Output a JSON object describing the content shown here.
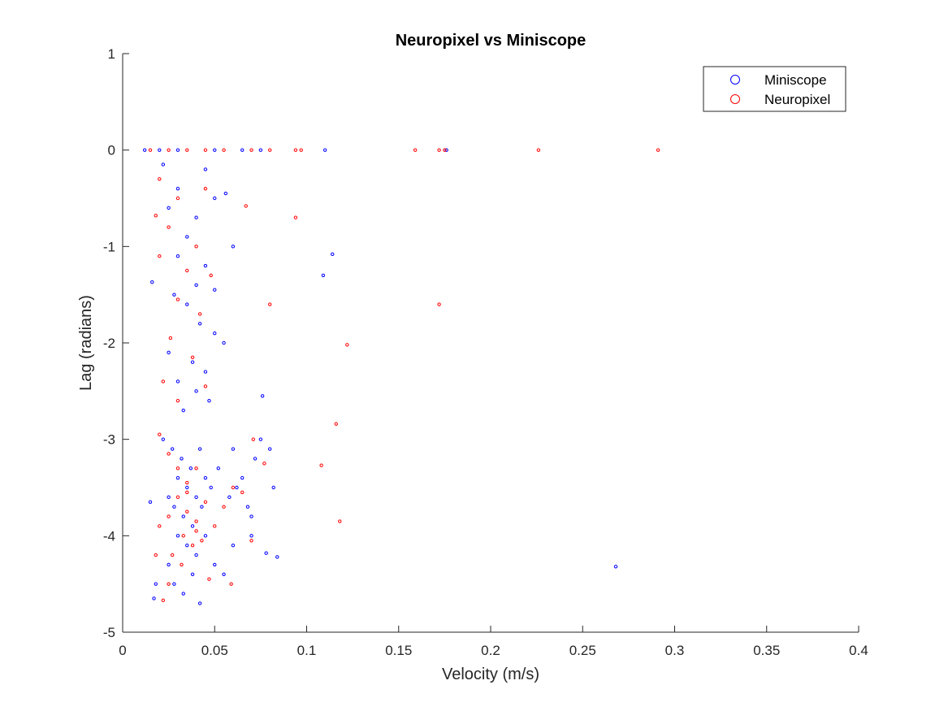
{
  "chart_data": {
    "type": "scatter",
    "title": "Neuropixel vs Miniscope",
    "xlabel": "Velocity (m/s)",
    "ylabel": "Lag (radians)",
    "xlim": [
      0,
      0.4
    ],
    "ylim": [
      -5,
      1
    ],
    "xticks": [
      "0",
      "0.05",
      "0.1",
      "0.15",
      "0.2",
      "0.25",
      "0.3",
      "0.35",
      "0.4"
    ],
    "yticks": [
      "1",
      "0",
      "-1",
      "-2",
      "-3",
      "-4",
      "-5"
    ],
    "grid": false,
    "legend_position": "top-right",
    "colors": {
      "Miniscope": "#0000ff",
      "Neuropixel": "#ff0000"
    },
    "series": [
      {
        "name": "Miniscope",
        "points": [
          [
            0.012,
            0
          ],
          [
            0.02,
            0
          ],
          [
            0.03,
            0
          ],
          [
            0.05,
            0
          ],
          [
            0.065,
            0
          ],
          [
            0.075,
            0
          ],
          [
            0.11,
            0
          ],
          [
            0.176,
            0
          ],
          [
            0.022,
            -0.15
          ],
          [
            0.045,
            -0.2
          ],
          [
            0.03,
            -0.4
          ],
          [
            0.05,
            -0.5
          ],
          [
            0.056,
            -0.45
          ],
          [
            0.025,
            -0.6
          ],
          [
            0.04,
            -0.7
          ],
          [
            0.035,
            -0.9
          ],
          [
            0.06,
            -1.0
          ],
          [
            0.03,
            -1.1
          ],
          [
            0.045,
            -1.2
          ],
          [
            0.016,
            -1.37
          ],
          [
            0.04,
            -1.4
          ],
          [
            0.05,
            -1.45
          ],
          [
            0.028,
            -1.5
          ],
          [
            0.035,
            -1.6
          ],
          [
            0.042,
            -1.8
          ],
          [
            0.05,
            -1.9
          ],
          [
            0.055,
            -2.0
          ],
          [
            0.025,
            -2.1
          ],
          [
            0.038,
            -2.2
          ],
          [
            0.045,
            -2.3
          ],
          [
            0.03,
            -2.4
          ],
          [
            0.04,
            -2.5
          ],
          [
            0.047,
            -2.6
          ],
          [
            0.033,
            -2.7
          ],
          [
            0.022,
            -3.0
          ],
          [
            0.027,
            -3.1
          ],
          [
            0.032,
            -3.2
          ],
          [
            0.037,
            -3.3
          ],
          [
            0.042,
            -3.1
          ],
          [
            0.03,
            -3.4
          ],
          [
            0.035,
            -3.5
          ],
          [
            0.04,
            -3.6
          ],
          [
            0.045,
            -3.4
          ],
          [
            0.025,
            -3.6
          ],
          [
            0.028,
            -3.7
          ],
          [
            0.033,
            -3.8
          ],
          [
            0.038,
            -3.9
          ],
          [
            0.043,
            -3.7
          ],
          [
            0.048,
            -3.5
          ],
          [
            0.052,
            -3.3
          ],
          [
            0.058,
            -3.6
          ],
          [
            0.062,
            -3.5
          ],
          [
            0.068,
            -3.7
          ],
          [
            0.072,
            -3.2
          ],
          [
            0.075,
            -3.0
          ],
          [
            0.08,
            -3.1
          ],
          [
            0.082,
            -3.5
          ],
          [
            0.03,
            -4.0
          ],
          [
            0.035,
            -4.1
          ],
          [
            0.04,
            -4.2
          ],
          [
            0.045,
            -4.0
          ],
          [
            0.05,
            -4.3
          ],
          [
            0.025,
            -4.3
          ],
          [
            0.028,
            -4.5
          ],
          [
            0.033,
            -4.6
          ],
          [
            0.038,
            -4.4
          ],
          [
            0.055,
            -4.4
          ],
          [
            0.06,
            -4.1
          ],
          [
            0.07,
            -4.0
          ],
          [
            0.078,
            -4.18
          ],
          [
            0.084,
            -4.22
          ],
          [
            0.018,
            -4.5
          ],
          [
            0.017,
            -4.65
          ],
          [
            0.042,
            -4.7
          ],
          [
            0.015,
            -3.65
          ],
          [
            0.065,
            -3.4
          ],
          [
            0.07,
            -3.8
          ],
          [
            0.06,
            -3.1
          ],
          [
            0.109,
            -1.3
          ],
          [
            0.114,
            -1.08
          ],
          [
            0.076,
            -2.55
          ],
          [
            0.268,
            -4.32
          ]
        ]
      },
      {
        "name": "Neuropixel",
        "points": [
          [
            0.015,
            0
          ],
          [
            0.025,
            0
          ],
          [
            0.035,
            0
          ],
          [
            0.045,
            0
          ],
          [
            0.055,
            0
          ],
          [
            0.07,
            0
          ],
          [
            0.08,
            0
          ],
          [
            0.094,
            0
          ],
          [
            0.097,
            0
          ],
          [
            0.159,
            0
          ],
          [
            0.172,
            0
          ],
          [
            0.175,
            0
          ],
          [
            0.226,
            0
          ],
          [
            0.291,
            0
          ],
          [
            0.02,
            -0.3
          ],
          [
            0.03,
            -0.5
          ],
          [
            0.045,
            -0.4
          ],
          [
            0.018,
            -0.68
          ],
          [
            0.025,
            -0.8
          ],
          [
            0.04,
            -1.0
          ],
          [
            0.02,
            -1.1
          ],
          [
            0.035,
            -1.25
          ],
          [
            0.048,
            -1.3
          ],
          [
            0.03,
            -1.55
          ],
          [
            0.042,
            -1.7
          ],
          [
            0.026,
            -1.95
          ],
          [
            0.038,
            -2.15
          ],
          [
            0.022,
            -2.4
          ],
          [
            0.045,
            -2.45
          ],
          [
            0.03,
            -2.6
          ],
          [
            0.067,
            -0.58
          ],
          [
            0.094,
            -0.7
          ],
          [
            0.071,
            -3.0
          ],
          [
            0.02,
            -2.95
          ],
          [
            0.025,
            -3.15
          ],
          [
            0.03,
            -3.3
          ],
          [
            0.035,
            -3.45
          ],
          [
            0.04,
            -3.3
          ],
          [
            0.03,
            -3.6
          ],
          [
            0.035,
            -3.75
          ],
          [
            0.04,
            -3.85
          ],
          [
            0.045,
            -3.65
          ],
          [
            0.025,
            -3.8
          ],
          [
            0.02,
            -3.9
          ],
          [
            0.033,
            -4.0
          ],
          [
            0.038,
            -4.1
          ],
          [
            0.043,
            -4.05
          ],
          [
            0.05,
            -3.9
          ],
          [
            0.055,
            -3.7
          ],
          [
            0.06,
            -3.5
          ],
          [
            0.065,
            -3.55
          ],
          [
            0.027,
            -4.2
          ],
          [
            0.032,
            -4.3
          ],
          [
            0.025,
            -4.5
          ],
          [
            0.022,
            -4.67
          ],
          [
            0.047,
            -4.45
          ],
          [
            0.059,
            -4.5
          ],
          [
            0.07,
            -4.05
          ],
          [
            0.018,
            -4.2
          ],
          [
            0.035,
            -3.55
          ],
          [
            0.04,
            -3.95
          ],
          [
            0.08,
            -1.6
          ],
          [
            0.122,
            -2.02
          ],
          [
            0.172,
            -1.6
          ],
          [
            0.116,
            -2.84
          ],
          [
            0.108,
            -3.27
          ],
          [
            0.077,
            -3.25
          ],
          [
            0.118,
            -3.85
          ]
        ]
      }
    ]
  }
}
